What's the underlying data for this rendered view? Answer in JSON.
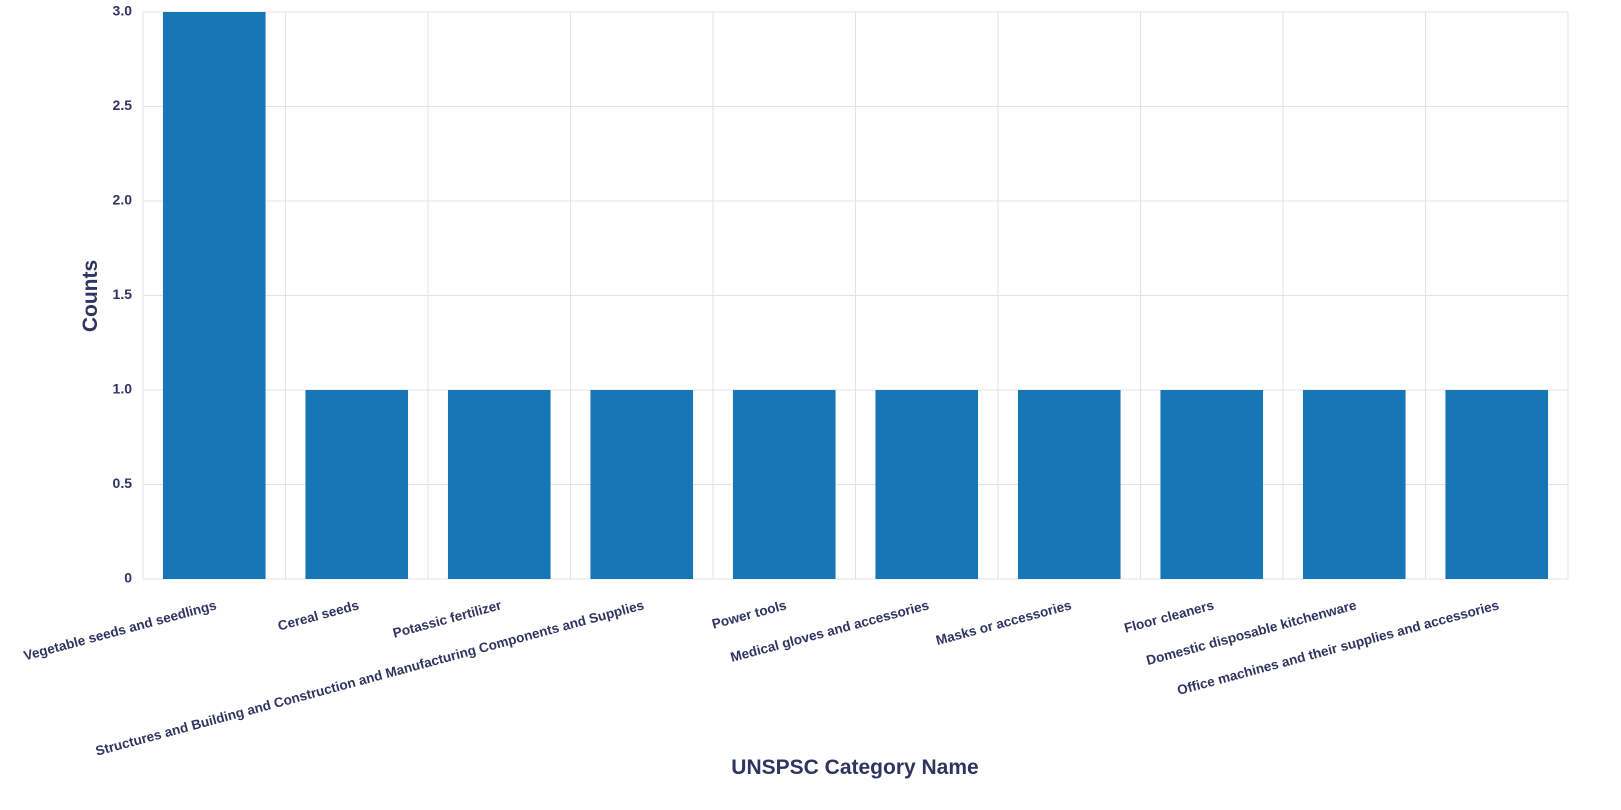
{
  "chart_data": {
    "type": "bar",
    "x_label": "UNSPSC Category Name",
    "y_label": "Counts",
    "categories": [
      "Vegetable seeds and seedlings",
      "Cereal seeds",
      "Potassic fertilizer",
      "Structures and Building and Construction and Manufacturing Components and Supplies",
      "Power tools",
      "Medical gloves and accessories",
      "Masks or accessories",
      "Floor cleaners",
      "Domestic disposable kitchenware",
      "Office machines and their supplies and accessories"
    ],
    "values": [
      3,
      1,
      1,
      1,
      1,
      1,
      1,
      1,
      1,
      1
    ],
    "color": "#1776b6",
    "ylim": [
      0,
      3
    ],
    "yticks": [
      0,
      0.5,
      {
        "value": 1,
        "label": "1.0"
      },
      1.5,
      {
        "value": 2,
        "label": "2.0"
      },
      2.5,
      {
        "value": 3,
        "label": "3.0"
      }
    ],
    "grid": true
  }
}
